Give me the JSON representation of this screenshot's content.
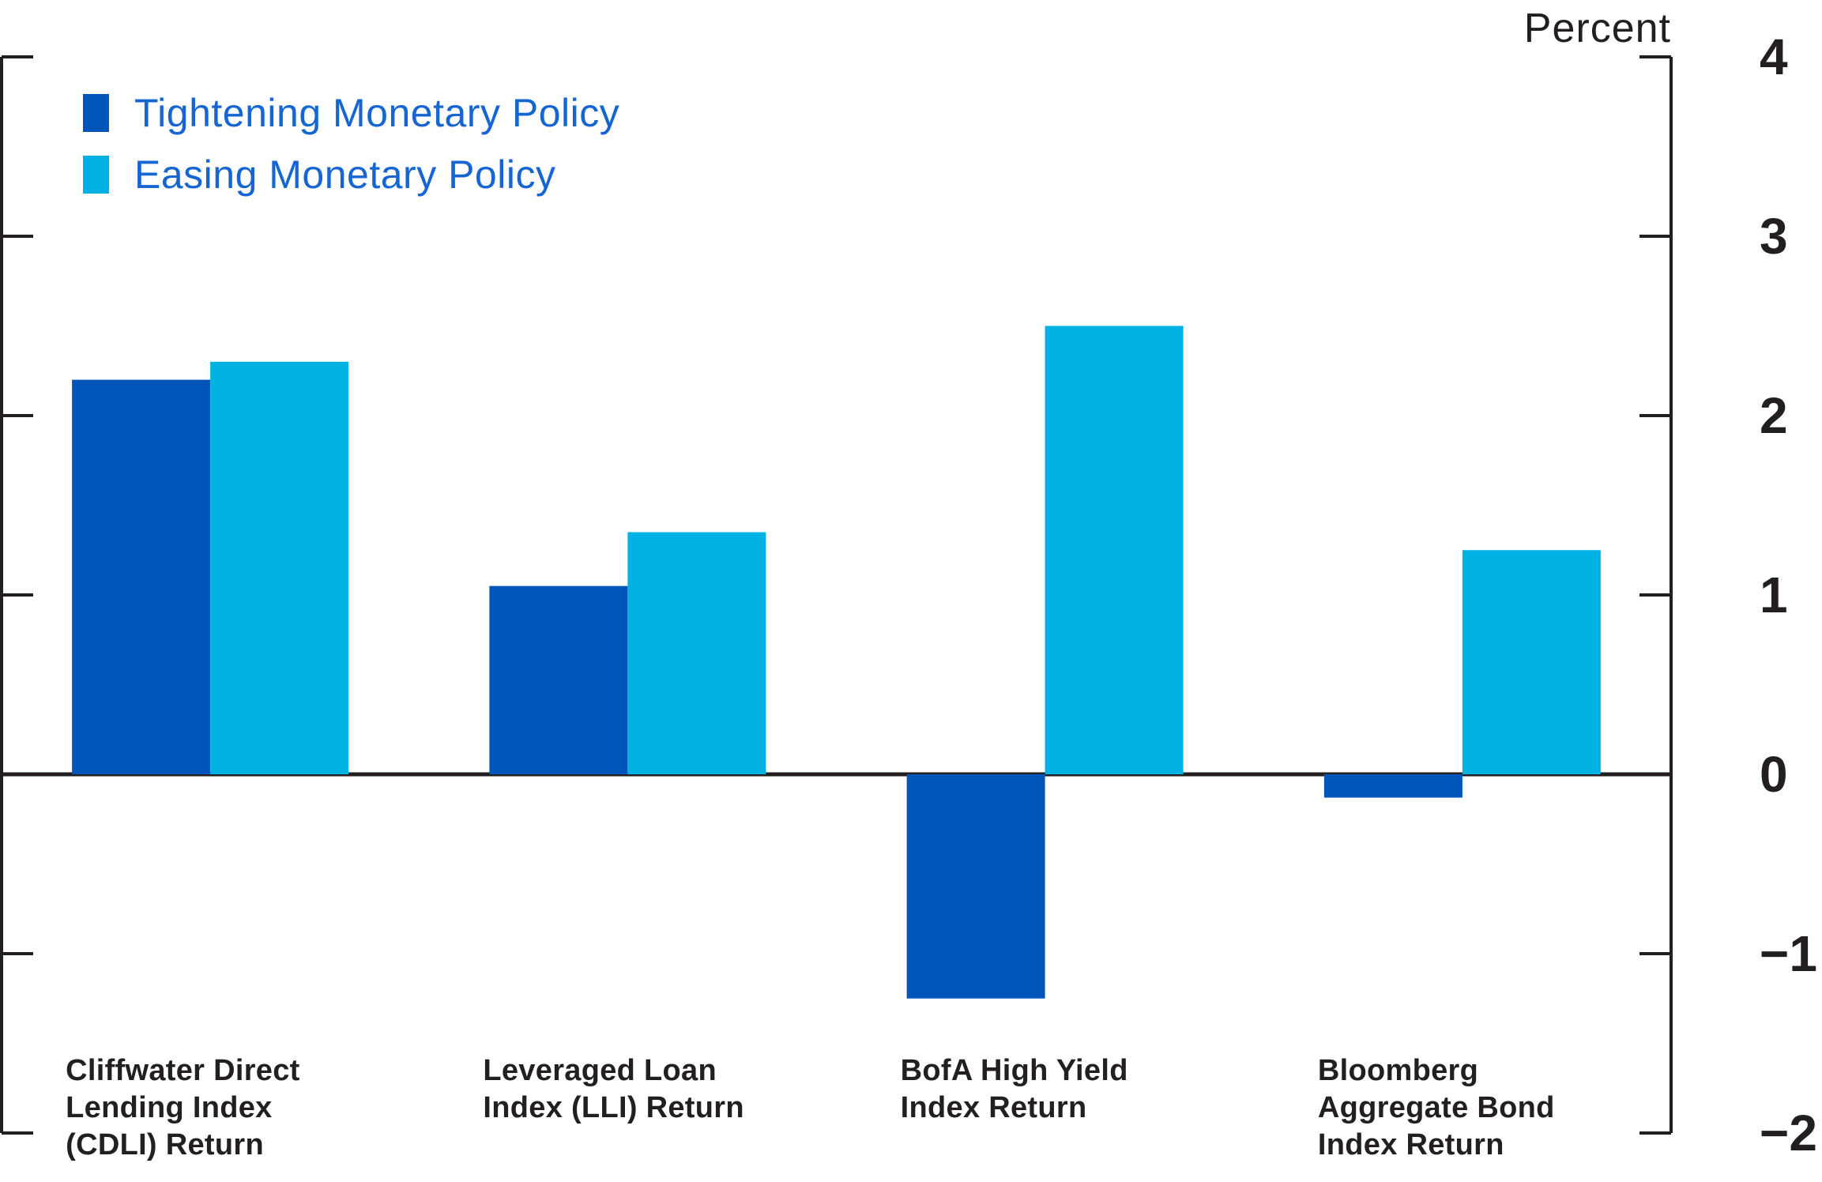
{
  "chart_data": {
    "type": "bar",
    "categories": [
      "Cliffwater Direct\nLending Index\n(CDLI) Return",
      "Leveraged Loan\nIndex (LLI) Return",
      "BofA High Yield\nIndex Return",
      "Bloomberg\nAggregate Bond\nIndex Return"
    ],
    "series": [
      {
        "name": "Tightening Monetary Policy",
        "color": "#0056B8",
        "values": [
          2.2,
          1.05,
          -1.25,
          -0.13
        ]
      },
      {
        "name": "Easing Monetary Policy",
        "color": "#00B2E3",
        "values": [
          2.3,
          1.35,
          2.5,
          1.25
        ]
      }
    ],
    "ylabel": "Percent",
    "ylim": [
      -2,
      4
    ],
    "yticks": [
      4,
      3,
      2,
      1,
      0,
      -1,
      -2
    ],
    "ytick_labels": [
      "4",
      "3",
      "2",
      "1",
      "0",
      "−1",
      "−2"
    ],
    "grid": false,
    "legend_position": "top-left",
    "colors": {
      "axis": "#231F20",
      "text": "#231F20",
      "legend_text": "#1565D2",
      "background": "#FFFFFF"
    }
  }
}
